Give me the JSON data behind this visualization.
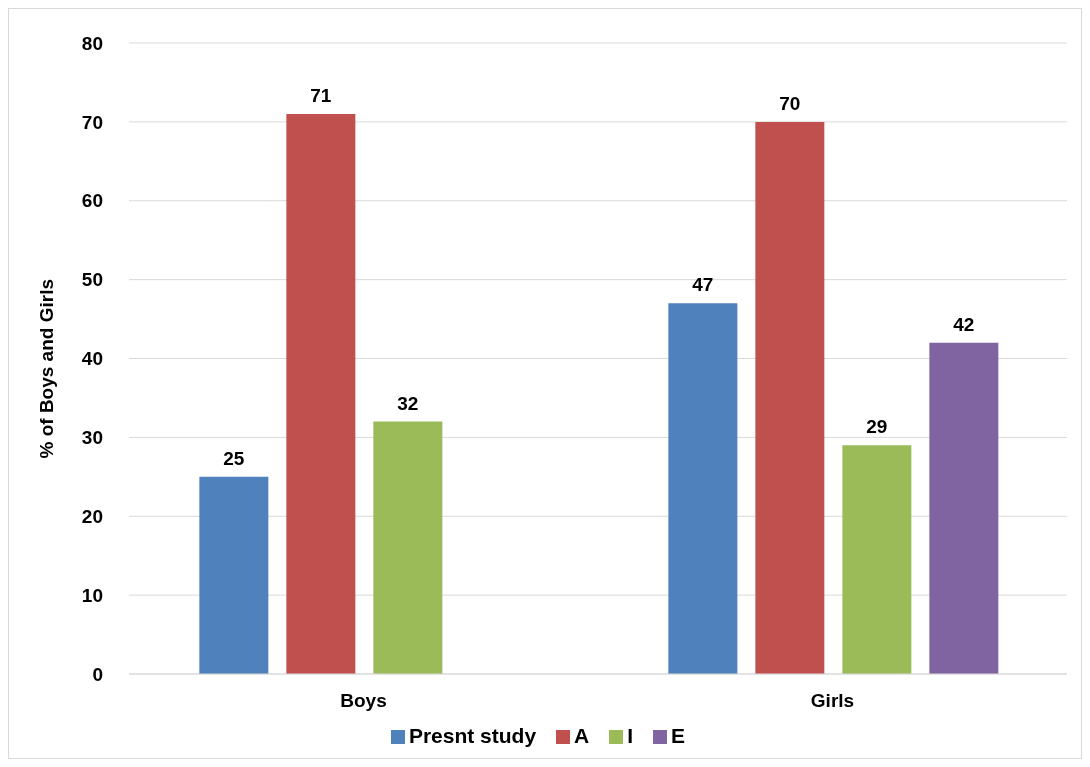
{
  "chart_data": {
    "type": "bar",
    "categories": [
      "Boys",
      "Girls"
    ],
    "ylabel": "% of Boys and Girls",
    "series": [
      {
        "name": "Presnt study",
        "color": "#4f81bd",
        "values": [
          25,
          47
        ]
      },
      {
        "name": "A",
        "color": "#c0504d",
        "values": [
          71,
          70
        ]
      },
      {
        "name": "I",
        "color": "#9bbb59",
        "values": [
          32,
          29
        ]
      },
      {
        "name": "E",
        "color": "#8064a2",
        "values": [
          null,
          42
        ]
      }
    ],
    "ylim": [
      0,
      80
    ],
    "yticks": [
      0,
      10,
      20,
      30,
      40,
      50,
      60,
      70,
      80
    ],
    "grid": "y",
    "legend": "bottom",
    "data_labels": true
  }
}
